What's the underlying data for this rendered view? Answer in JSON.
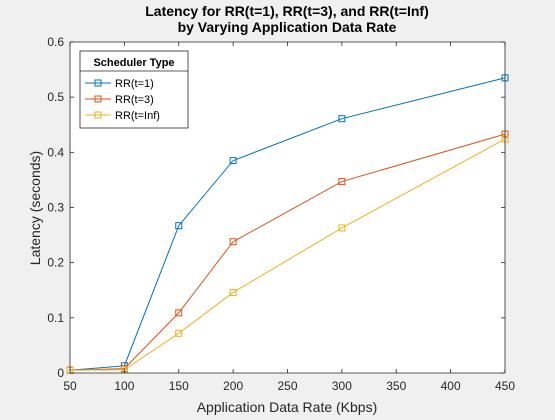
{
  "chart_data": {
    "type": "line",
    "title": "Latency for RR(t=1), RR(t=3), and RR(t=Inf)",
    "subtitle": "by Varying Application Data Rate",
    "xlabel": "Application Data Rate (Kbps)",
    "ylabel": "Latency (seconds)",
    "xlim": [
      50,
      450
    ],
    "ylim": [
      0,
      0.6
    ],
    "xticks": [
      50,
      100,
      150,
      200,
      250,
      300,
      350,
      400,
      450
    ],
    "yticks": [
      0,
      0.1,
      0.2,
      0.3,
      0.4,
      0.5,
      0.6
    ],
    "grid": false,
    "legend": {
      "title": "Scheduler Type",
      "placement": "top-left"
    },
    "x": [
      50,
      100,
      150,
      200,
      300,
      450
    ],
    "series": [
      {
        "name": "RR(t=1)",
        "color": "#0072BD",
        "marker": "square",
        "values": [
          0.005,
          0.013,
          0.267,
          0.385,
          0.461,
          0.535
        ]
      },
      {
        "name": "RR(t=3)",
        "color": "#D95319",
        "marker": "square",
        "values": [
          0.005,
          0.008,
          0.109,
          0.238,
          0.347,
          0.433
        ]
      },
      {
        "name": "RR(t=Inf)",
        "color": "#EDB120",
        "marker": "square",
        "values": [
          0.005,
          0.006,
          0.072,
          0.146,
          0.263,
          0.424
        ]
      }
    ]
  }
}
